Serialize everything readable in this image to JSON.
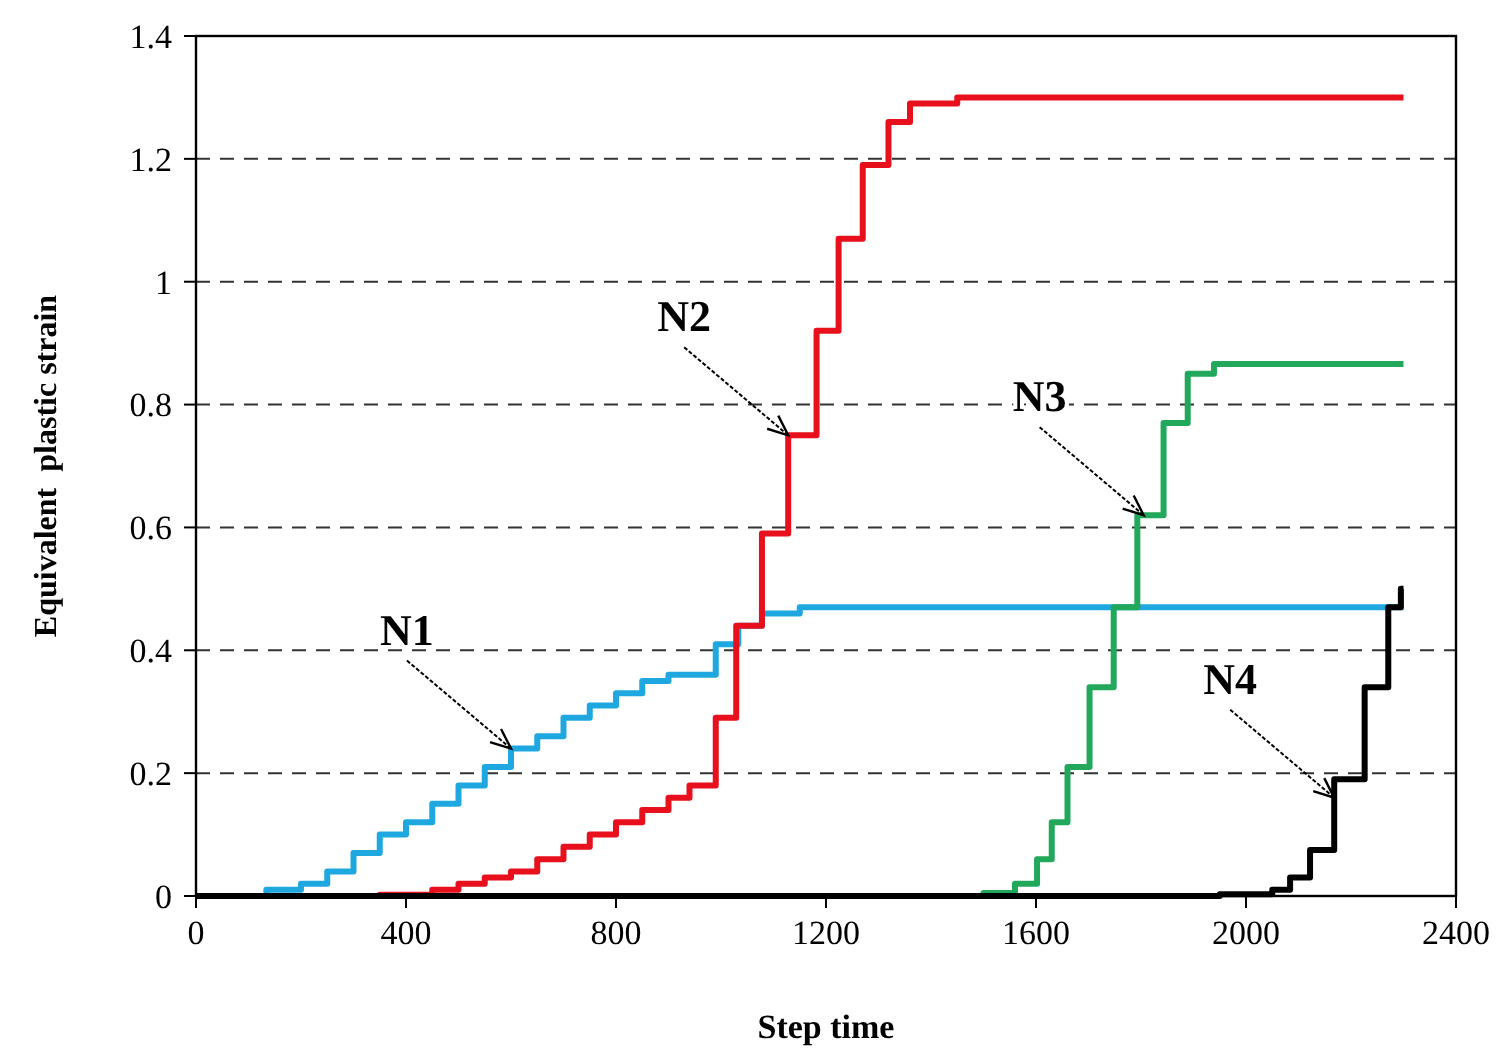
{
  "chart_data": {
    "type": "step",
    "xlabel": "Step time",
    "ylabel": "Equivalent  plastic strain",
    "xlim": [
      0,
      2400
    ],
    "xticks": [
      0,
      400,
      800,
      1200,
      1600,
      2000,
      2400
    ],
    "ylim": [
      0,
      1.4
    ],
    "yticks": [
      0,
      0.2,
      0.4,
      0.6,
      0.8,
      1,
      1.2,
      1.4
    ],
    "grid": "y",
    "line_style": "solid",
    "series": [
      {
        "color": "#1fa8e0",
        "x": [
          0,
          134,
          200,
          250,
          300,
          350,
          400,
          450,
          500,
          550,
          600,
          650,
          700,
          750,
          800,
          850,
          900,
          990,
          1033,
          1078,
          1150,
          2300
        ],
        "values": [
          0,
          0.01,
          0.02,
          0.04,
          0.07,
          0.1,
          0.12,
          0.15,
          0.18,
          0.21,
          0.24,
          0.26,
          0.29,
          0.31,
          0.33,
          0.35,
          0.36,
          0.41,
          0.44,
          0.46,
          0.47,
          0.47
        ]
      },
      {
        "color": "#e8101c",
        "x": [
          0,
          350,
          450,
          500,
          550,
          600,
          650,
          700,
          750,
          800,
          850,
          900,
          940,
          990,
          1029,
          1078,
          1128,
          1182,
          1224,
          1270,
          1319,
          1360,
          1450,
          2300
        ],
        "values": [
          0,
          0.002,
          0.01,
          0.02,
          0.03,
          0.04,
          0.06,
          0.08,
          0.1,
          0.12,
          0.14,
          0.16,
          0.18,
          0.29,
          0.44,
          0.59,
          0.75,
          0.92,
          1.07,
          1.19,
          1.26,
          1.29,
          1.3,
          1.3
        ]
      },
      {
        "color": "#22a85a",
        "x": [
          0,
          1500,
          1560,
          1602,
          1630,
          1660,
          1702,
          1748,
          1793,
          1843,
          1889,
          1939,
          2300
        ],
        "values": [
          0,
          0.005,
          0.02,
          0.06,
          0.12,
          0.21,
          0.34,
          0.47,
          0.62,
          0.77,
          0.85,
          0.866,
          0.866
        ]
      },
      {
        "color": "#000000",
        "x": [
          0,
          1950,
          2050,
          2084,
          2122,
          2168,
          2226,
          2271,
          2295,
          2300
        ],
        "values": [
          0,
          0.003,
          0.01,
          0.03,
          0.075,
          0.19,
          0.34,
          0.47,
          0.5,
          0.5
        ]
      }
    ],
    "annotations": [
      {
        "text": "N1",
        "x": 600,
        "y": 0.24
      },
      {
        "text": "N2",
        "x": 1128,
        "y": 0.75
      },
      {
        "text": "N3",
        "x": 1805,
        "y": 0.62
      },
      {
        "text": "N4",
        "x": 2168,
        "y": 0.16
      }
    ]
  }
}
